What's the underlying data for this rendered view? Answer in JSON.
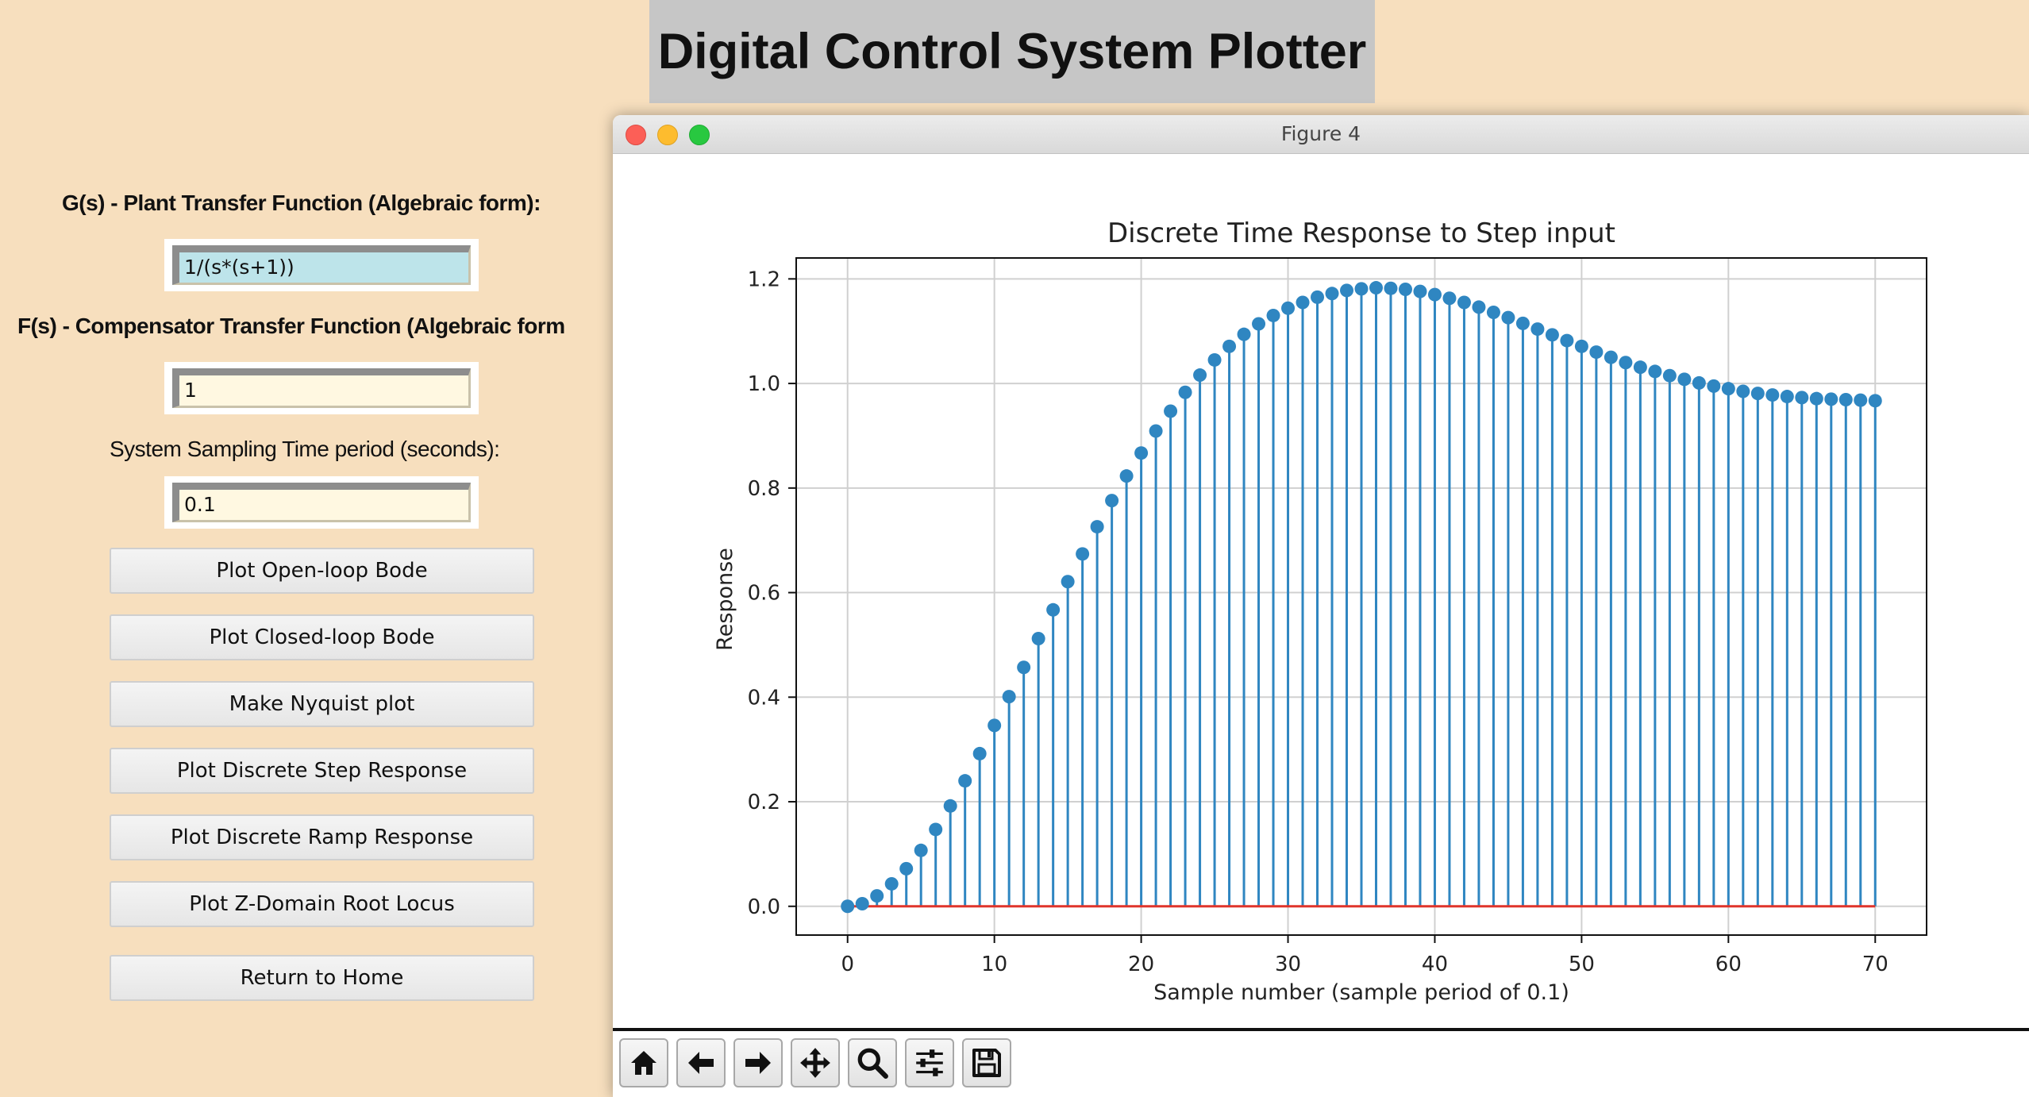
{
  "banner": {
    "title": "Digital Control System Plotter"
  },
  "form": {
    "plant_label": "G(s) - Plant Transfer Function (Algebraic form):",
    "plant_value": "1/(s*(s+1))",
    "comp_label": "F(s) - Compensator Transfer Function (Algebraic form",
    "comp_value": "1",
    "ts_label": "System Sampling Time period (seconds):",
    "ts_value": "0.1"
  },
  "buttons": [
    "Plot Open-loop Bode",
    "Plot Closed-loop Bode",
    "Make Nyquist plot",
    "Plot Discrete Step Response",
    "Plot Discrete Ramp Response",
    "Plot Z-Domain Root Locus",
    "Return to Home"
  ],
  "figure_window": {
    "title": "Figure 4"
  },
  "toolbar": {
    "icons": [
      "home-icon",
      "back-arrow-icon",
      "forward-arrow-icon",
      "pan-icon",
      "zoom-icon",
      "configure-subplots-icon",
      "save-icon"
    ]
  },
  "colors": {
    "background": "#f7dfbe",
    "stem": "#2f86c1",
    "baseline": "#e0352b",
    "plant_entry": "#bde4ea",
    "entry": "#fff8e1"
  },
  "chart_data": {
    "type": "stem",
    "title": "Discrete Time Response to Step input",
    "xlabel": "Sample number (sample period of 0.1)",
    "ylabel": "Response",
    "xlim": [
      -3.5,
      73.5
    ],
    "ylim": [
      -0.055,
      1.24
    ],
    "xticks": [
      0,
      10,
      20,
      30,
      40,
      50,
      60,
      70
    ],
    "yticks": [
      0.0,
      0.2,
      0.4,
      0.6,
      0.8,
      1.0,
      1.2
    ],
    "ytick_labels": [
      "0.0",
      "0.2",
      "0.4",
      "0.6",
      "0.8",
      "1.0",
      "1.2"
    ],
    "grid": true,
    "baseline": 0,
    "x": [
      0,
      1,
      2,
      3,
      4,
      5,
      6,
      7,
      8,
      9,
      10,
      11,
      12,
      13,
      14,
      15,
      16,
      17,
      18,
      19,
      20,
      21,
      22,
      23,
      24,
      25,
      26,
      27,
      28,
      29,
      30,
      31,
      32,
      33,
      34,
      35,
      36,
      37,
      38,
      39,
      40,
      41,
      42,
      43,
      44,
      45,
      46,
      47,
      48,
      49,
      50,
      51,
      52,
      53,
      54,
      55,
      56,
      57,
      58,
      59,
      60,
      61,
      62,
      63,
      64,
      65,
      66,
      67,
      68,
      69,
      70
    ],
    "y": [
      0.0,
      0.005,
      0.02,
      0.043,
      0.072,
      0.107,
      0.147,
      0.192,
      0.24,
      0.292,
      0.346,
      0.401,
      0.457,
      0.512,
      0.567,
      0.621,
      0.674,
      0.726,
      0.776,
      0.823,
      0.867,
      0.909,
      0.947,
      0.983,
      1.016,
      1.045,
      1.071,
      1.094,
      1.114,
      1.13,
      1.144,
      1.155,
      1.165,
      1.172,
      1.178,
      1.181,
      1.183,
      1.182,
      1.18,
      1.176,
      1.17,
      1.163,
      1.155,
      1.146,
      1.136,
      1.126,
      1.115,
      1.104,
      1.093,
      1.082,
      1.071,
      1.06,
      1.05,
      1.04,
      1.031,
      1.023,
      1.015,
      1.008,
      1.001,
      0.995,
      0.99,
      0.985,
      0.981,
      0.978,
      0.975,
      0.973,
      0.971,
      0.97,
      0.969,
      0.968,
      0.967
    ]
  }
}
